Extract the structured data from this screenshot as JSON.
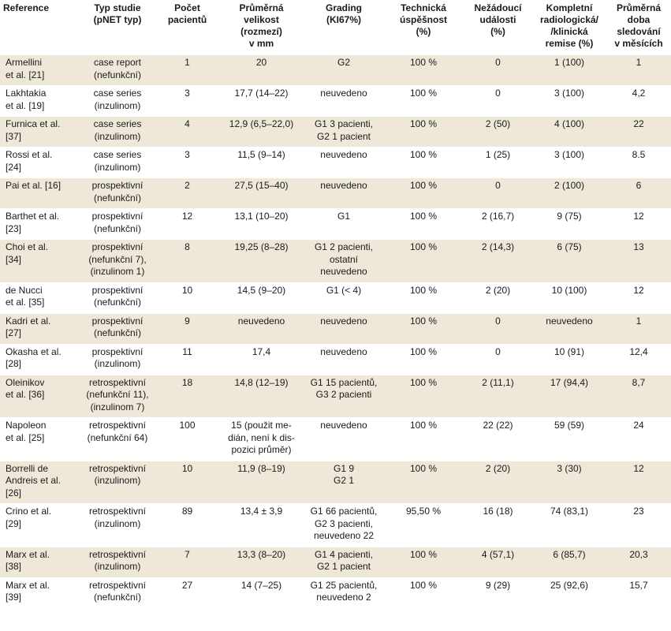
{
  "headers": [
    "Reference",
    "Typ studie\n(pNET typ)",
    "Počet\npacientů",
    "Průměrná\nvelikost\n(rozmezí)\nv mm",
    "Grading\n(KI67%)",
    "Technická\núspěšnost\n(%)",
    "Nežádoucí\nudálosti\n(%)",
    "Kompletní\nradiologická/\n/klinická\nremise (%)",
    "Průměrná\ndoba\nsledování\nv měsících"
  ],
  "rows": [
    [
      "Armellini\net al. [21]",
      "case report\n(nefunkční)",
      "1",
      "20",
      "G2",
      "100 %",
      "0",
      "1 (100)",
      "1"
    ],
    [
      "Lakhtakia\net al. [19]",
      "case series\n(inzulinom)",
      "3",
      "17,7 (14–22)",
      "neuvedeno",
      "100 %",
      "0",
      "3 (100)",
      "4,2"
    ],
    [
      "Furnica et al.\n[37]",
      "case series\n(inzulinom)",
      "4",
      "12,9 (6,5–22,0)",
      "G1 3 pacienti,\nG2 1 pacient",
      "100 %",
      "2 (50)",
      "4 (100)",
      "22"
    ],
    [
      "Rossi et al.\n[24]",
      "case series\n(inzulinom)",
      "3",
      "11,5 (9–14)",
      "neuvedeno",
      "100 %",
      "1 (25)",
      "3 (100)",
      "8.5"
    ],
    [
      "Pai et al. [16]",
      "prospektivní\n(nefunkční)",
      "2",
      "27,5 (15–40)",
      "neuvedeno",
      "100 %",
      "0",
      "2 (100)",
      "6"
    ],
    [
      "Barthet et al.\n[23]",
      "prospektivní\n(nefunkční)",
      "12",
      "13,1 (10–20)",
      "G1",
      "100 %",
      "2 (16,7)",
      "9 (75)",
      "12"
    ],
    [
      "Choi et al.\n[34]",
      "prospektivní\n(nefunkční 7),\n(inzulinom 1)",
      "8",
      "19,25 (8–28)",
      "G1 2 pacienti,\nostatní\nneuvedeno",
      "100 %",
      "2 (14,3)",
      "6 (75)",
      "13"
    ],
    [
      "de Nucci\net al. [35]",
      "prospektivní\n(nefunkční)",
      "10",
      "14,5 (9–20)",
      "G1 (< 4)",
      "100 %",
      "2 (20)",
      "10 (100)",
      "12"
    ],
    [
      "Kadri et al.\n[27]",
      "prospektivní\n(nefunkční)",
      "9",
      "neuvedeno",
      "neuvedeno",
      "100 %",
      "0",
      "neuvedeno",
      "1"
    ],
    [
      "Okasha et al.\n[28]",
      "prospektivní\n(inzulinom)",
      "11",
      "17,4",
      "neuvedeno",
      "100 %",
      "0",
      "10 (91)",
      "12,4"
    ],
    [
      "Oleinikov\net al. [36]",
      "retrospektivní\n(nefunkční 11),\n(inzulinom 7)",
      "18",
      "14,8 (12–19)",
      "G1 15 pacientů,\nG3 2 pacienti",
      "100 %",
      "2 (11,1)",
      "17 (94,4)",
      "8,7"
    ],
    [
      "Napoleon\net al. [25]",
      "retrospektivní\n(nefunkční 64)",
      "100",
      "15 (použit me-\ndián, není k dis-\npozici průměr)",
      "neuvedeno",
      "100 %",
      "22 (22)",
      "59 (59)",
      "24"
    ],
    [
      "Borrelli de\nAndreis et al.\n[26]",
      "retrospektivní\n(inzulinom)",
      "10",
      "11,9 (8–19)",
      "G1 9\nG2 1",
      "100 %",
      "2 (20)",
      "3 (30)",
      "12"
    ],
    [
      "Crino et al.\n[29]",
      "retrospektivní\n(inzulinom)",
      "89",
      "13,4 ± 3,9",
      "G1 66 pacientů,\nG2 3 pacienti,\nneuvedeno 22",
      "95,50 %",
      "16 (18)",
      "74 (83,1)",
      "23"
    ],
    [
      "Marx et al.\n[38]",
      "retrospektivní\n(inzulinom)",
      "7",
      "13,3 (8–20)",
      "G1 4 pacienti,\nG2 1 pacient",
      "100 %",
      "4 (57,1)",
      "6 (85,7)",
      "20,3"
    ],
    [
      "Marx et al.\n[39]",
      "retrospektivní\n(nefunkční)",
      "27",
      "14 (7–25)",
      "G1 25 pacientů,\nneuvedeno 2",
      "100 %",
      "9 (29)",
      "25 (92,6)",
      "15,7"
    ]
  ]
}
